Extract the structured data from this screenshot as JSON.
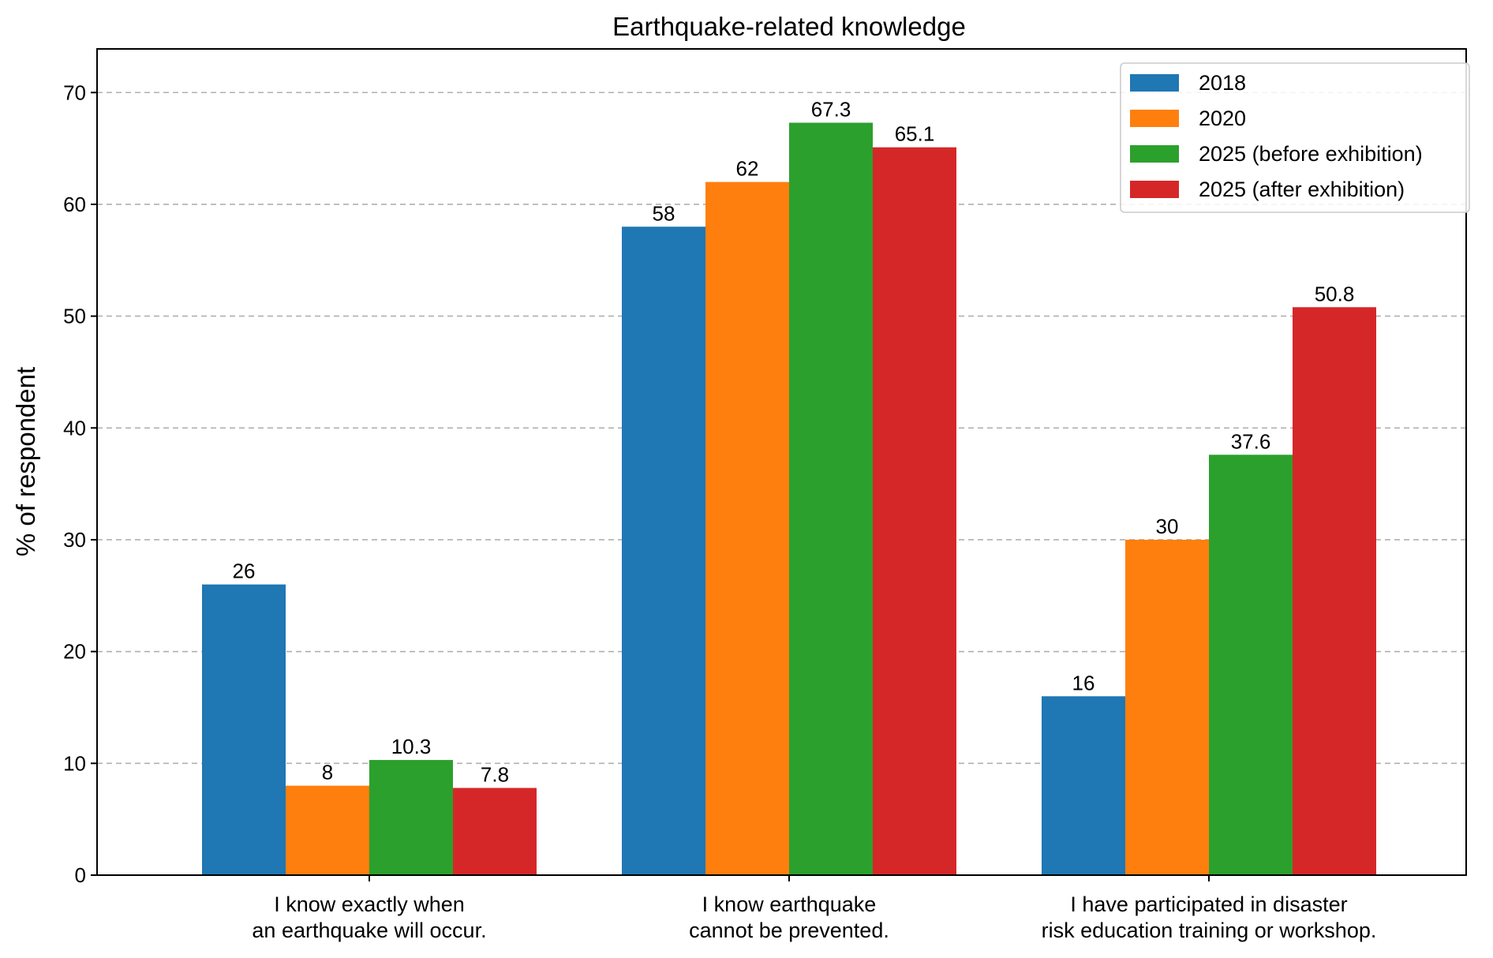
{
  "chart_data": {
    "type": "bar",
    "title": "Earthquake-related knowledge",
    "xlabel": "",
    "ylabel": "% of respondent",
    "ylim": [
      0,
      73.9
    ],
    "yticks": [
      0,
      10,
      20,
      30,
      40,
      50,
      60,
      70
    ],
    "grid": "horizontal-dashed",
    "legend_position": "top-right",
    "categories": [
      [
        "I know exactly when",
        "an earthquake will occur."
      ],
      [
        "I know earthquake",
        "cannot be prevented."
      ],
      [
        "I have participated in disaster",
        "risk education training or workshop."
      ]
    ],
    "series": [
      {
        "name": "2018",
        "color": "#1f77b4",
        "values": [
          26,
          58,
          16
        ],
        "labels": [
          "26",
          "58",
          "16"
        ]
      },
      {
        "name": "2020",
        "color": "#ff7f0e",
        "values": [
          8,
          62,
          30
        ],
        "labels": [
          "8",
          "62",
          "30"
        ]
      },
      {
        "name": "2025 (before exhibition)",
        "color": "#2ca02c",
        "values": [
          10.3,
          67.3,
          37.6
        ],
        "labels": [
          "10.3",
          "67.3",
          "37.6"
        ]
      },
      {
        "name": "2025 (after exhibition)",
        "color": "#d62728",
        "values": [
          7.8,
          65.1,
          50.8
        ],
        "labels": [
          "7.8",
          "65.1",
          "50.8"
        ]
      }
    ]
  }
}
